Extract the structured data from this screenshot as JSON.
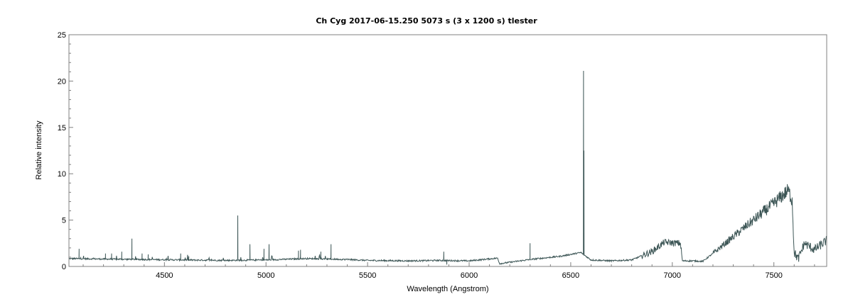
{
  "chart_data": {
    "type": "line",
    "title": "Ch Cyg  2017-06-15.250  5073 s (3 x 1200 s)  tlester",
    "xlabel": "Wavelength (Angstrom)",
    "ylabel": "Relative intensity",
    "xlim": [
      4030,
      7760
    ],
    "ylim": [
      0,
      25
    ],
    "x_ticks": [
      4500,
      5000,
      5500,
      6000,
      6500,
      7000,
      7500
    ],
    "y_ticks": [
      0,
      5,
      10,
      15,
      20,
      25
    ],
    "grid": false,
    "line_color": "#3d5656",
    "series": [
      {
        "baseline": [
          [
            4030,
            0.85
          ],
          [
            4200,
            0.8
          ],
          [
            4400,
            0.75
          ],
          [
            4600,
            0.7
          ],
          [
            4800,
            0.65
          ],
          [
            5000,
            0.7
          ],
          [
            5200,
            0.85
          ],
          [
            5400,
            0.75
          ],
          [
            5500,
            0.65
          ],
          [
            5700,
            0.6
          ],
          [
            5850,
            0.65
          ],
          [
            6000,
            0.6
          ],
          [
            6140,
            0.9
          ],
          [
            6150,
            0.3
          ],
          [
            6200,
            0.45
          ],
          [
            6300,
            0.75
          ],
          [
            6450,
            1.1
          ],
          [
            6550,
            1.5
          ],
          [
            6600,
            0.7
          ],
          [
            6700,
            0.6
          ],
          [
            6800,
            0.7
          ],
          [
            6900,
            1.6
          ],
          [
            6960,
            2.6
          ],
          [
            7040,
            2.5
          ],
          [
            7050,
            0.6
          ],
          [
            7100,
            0.6
          ],
          [
            7150,
            0.55
          ],
          [
            7200,
            1.4
          ],
          [
            7300,
            3.2
          ],
          [
            7400,
            5.0
          ],
          [
            7500,
            6.8
          ],
          [
            7570,
            8.2
          ],
          [
            7590,
            7.2
          ],
          [
            7600,
            1.5
          ],
          [
            7620,
            0.8
          ],
          [
            7650,
            2.5
          ],
          [
            7700,
            1.8
          ],
          [
            7760,
            2.8
          ]
        ],
        "lines": [
          [
            4080,
            1.9
          ],
          [
            4210,
            1.4
          ],
          [
            4240,
            1.4
          ],
          [
            4290,
            1.6
          ],
          [
            4340,
            3.0
          ],
          [
            4390,
            1.4
          ],
          [
            4420,
            1.3
          ],
          [
            4580,
            1.4
          ],
          [
            4620,
            1.1
          ],
          [
            4861,
            5.5
          ],
          [
            4921,
            2.4
          ],
          [
            4990,
            1.9
          ],
          [
            5015,
            2.4
          ],
          [
            5160,
            1.7
          ],
          [
            5170,
            1.8
          ],
          [
            5270,
            1.6
          ],
          [
            5320,
            2.4
          ],
          [
            5875,
            1.6
          ],
          [
            5890,
            0.2
          ],
          [
            6300,
            2.5
          ],
          [
            6563,
            21.1
          ],
          [
            6565,
            12.5
          ]
        ]
      }
    ]
  }
}
